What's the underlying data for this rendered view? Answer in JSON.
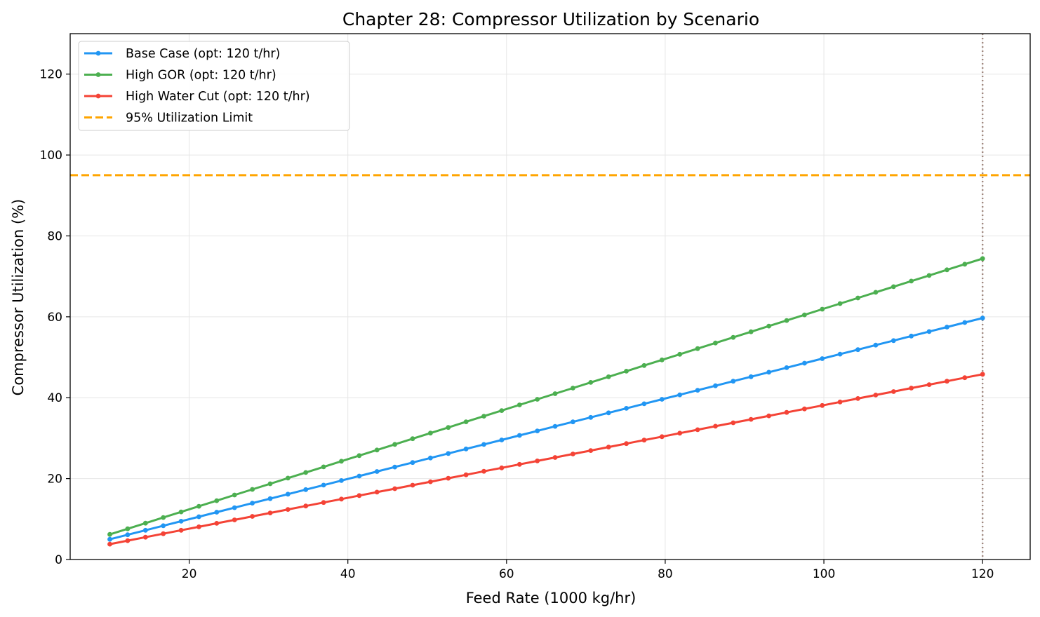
{
  "chart_data": {
    "type": "line",
    "title": "Chapter 28: Compressor Utilization by Scenario",
    "xlabel": "Feed Rate (1000 kg/hr)",
    "ylabel": "Compressor Utilization (%)",
    "xlim": [
      5,
      126
    ],
    "ylim": [
      0,
      130
    ],
    "xticks": [
      20,
      40,
      60,
      80,
      100,
      120
    ],
    "yticks": [
      0,
      20,
      40,
      60,
      80,
      100,
      120
    ],
    "grid": true,
    "legend_position": "top-left",
    "x": {
      "start": 10,
      "end": 120,
      "count": 50
    },
    "series": [
      {
        "name": "Base Case (opt: 120 t/hr)",
        "color": "#2196F3",
        "marker": "circle",
        "y_start": 5.0,
        "y_end": 59.7
      },
      {
        "name": "High GOR (opt: 120 t/hr)",
        "color": "#4CAF50",
        "marker": "circle",
        "y_start": 6.2,
        "y_end": 74.4
      },
      {
        "name": "High Water Cut (opt: 120 t/hr)",
        "color": "#F44336",
        "marker": "circle",
        "y_start": 3.8,
        "y_end": 45.8
      }
    ],
    "reference_lines": [
      {
        "name": "95% Utilization Limit",
        "orientation": "horizontal",
        "value": 95,
        "color": "#FFA500",
        "style": "dashed",
        "in_legend": true
      },
      {
        "orientation": "vertical",
        "value": 120,
        "color": "#A1887F",
        "style": "dotted",
        "in_legend": false
      }
    ]
  }
}
